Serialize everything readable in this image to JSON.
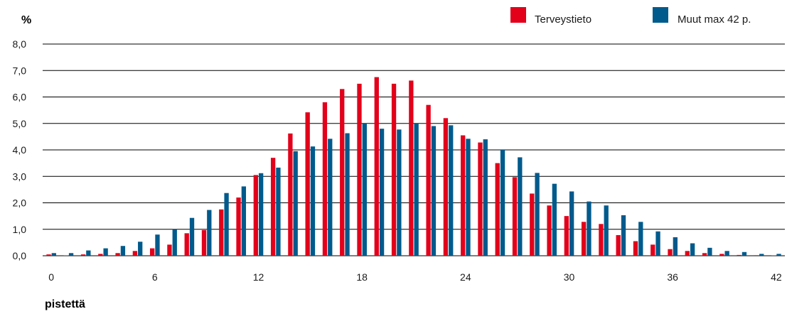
{
  "chart_data": {
    "type": "bar",
    "y_unit": "%",
    "xlabel": "pistettä",
    "ylim": [
      0,
      8
    ],
    "y_ticks": [
      "0,0",
      "1,0",
      "2,0",
      "3,0",
      "4,0",
      "5,0",
      "6,0",
      "7,0",
      "8,0"
    ],
    "x_ticks": [
      "0",
      "6",
      "12",
      "18",
      "24",
      "30",
      "36",
      "42"
    ],
    "x_tick_values": [
      0,
      6,
      12,
      18,
      24,
      30,
      36,
      42
    ],
    "grid": true,
    "legend_position": "top-right",
    "categories": [
      0,
      1,
      2,
      3,
      4,
      5,
      6,
      7,
      8,
      9,
      10,
      11,
      12,
      13,
      14,
      15,
      16,
      17,
      18,
      19,
      20,
      21,
      22,
      23,
      24,
      25,
      26,
      27,
      28,
      29,
      30,
      31,
      32,
      33,
      34,
      35,
      36,
      37,
      38,
      39,
      40,
      41,
      42
    ],
    "series": [
      {
        "name": "Terveystieto",
        "color": "#e2001a",
        "values": [
          0.05,
          0.01,
          0.05,
          0.07,
          0.1,
          0.18,
          0.28,
          0.42,
          0.85,
          0.97,
          1.75,
          2.2,
          3.05,
          3.7,
          4.62,
          5.42,
          5.8,
          6.3,
          6.5,
          6.75,
          6.5,
          6.62,
          5.7,
          5.2,
          4.55,
          4.28,
          3.5,
          2.97,
          2.35,
          1.9,
          1.5,
          1.28,
          1.2,
          0.78,
          0.55,
          0.42,
          0.25,
          0.18,
          0.1,
          0.07,
          0.03,
          0.02,
          0.01
        ]
      },
      {
        "name": "Muut max 42 p.",
        "color": "#005a8c",
        "values": [
          0.1,
          0.1,
          0.2,
          0.28,
          0.37,
          0.53,
          0.8,
          1.0,
          1.43,
          1.73,
          2.37,
          2.62,
          3.12,
          3.33,
          3.95,
          4.13,
          4.42,
          4.63,
          5.0,
          4.8,
          4.77,
          5.0,
          4.9,
          4.93,
          4.42,
          4.4,
          4.0,
          3.72,
          3.13,
          2.72,
          2.43,
          2.05,
          1.9,
          1.53,
          1.28,
          0.92,
          0.7,
          0.47,
          0.3,
          0.18,
          0.14,
          0.07,
          0.07
        ]
      }
    ]
  },
  "colors": {
    "grid": "#000000",
    "axis": "#000000"
  }
}
